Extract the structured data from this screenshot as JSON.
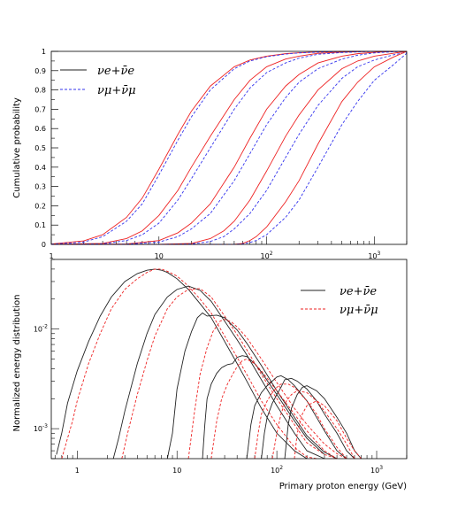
{
  "colors": {
    "red": "#ee2222",
    "blue": "#3333ee",
    "black": "#222222",
    "frame": "#000000"
  },
  "chart_data": [
    {
      "type": "line",
      "xscale": "log",
      "xlim": [
        1,
        2000
      ],
      "ylim": [
        0,
        1
      ],
      "ylabel": "Cumulative probability",
      "xlabel": "",
      "x_tick_labels": [
        "1",
        "10",
        "10^2",
        "10^3"
      ],
      "y_tick_labels": [
        "0",
        "0.1",
        "0.2",
        "0.3",
        "0.4",
        "0.5",
        "0.6",
        "0.7",
        "0.8",
        "0.9",
        "1"
      ],
      "legend": {
        "position": "top-left",
        "entries": [
          {
            "name": "νe+ν̄e",
            "style": "solid"
          },
          {
            "name": "νμ+ν̄μ",
            "style": "dashed"
          }
        ]
      },
      "series": [
        {
          "flavor": "e",
          "x": [
            1,
            2,
            3,
            5,
            7,
            10,
            15,
            20,
            30,
            50,
            70,
            100,
            150,
            200,
            300,
            500,
            700,
            1000,
            1500,
            2000
          ],
          "y": [
            0.002,
            0.018,
            0.05,
            0.14,
            0.24,
            0.39,
            0.57,
            0.69,
            0.82,
            0.92,
            0.955,
            0.975,
            0.988,
            0.993,
            0.997,
            0.999,
            1,
            1,
            1,
            1
          ]
        },
        {
          "flavor": "mu",
          "x": [
            1,
            2,
            3,
            5,
            7,
            10,
            15,
            20,
            30,
            50,
            70,
            100,
            150,
            200,
            300,
            500,
            700,
            1000,
            1500,
            2000
          ],
          "y": [
            0.001,
            0.012,
            0.04,
            0.12,
            0.21,
            0.36,
            0.54,
            0.66,
            0.8,
            0.91,
            0.95,
            0.972,
            0.986,
            0.992,
            0.996,
            0.999,
            1,
            1,
            1,
            1
          ]
        },
        {
          "flavor": "e",
          "x": [
            1,
            3,
            5,
            7,
            10,
            15,
            20,
            30,
            50,
            70,
            100,
            150,
            200,
            300,
            500,
            700,
            1000,
            1500,
            2000
          ],
          "y": [
            0,
            0.005,
            0.03,
            0.07,
            0.15,
            0.28,
            0.4,
            0.56,
            0.75,
            0.85,
            0.92,
            0.96,
            0.975,
            0.99,
            0.996,
            0.998,
            1,
            1,
            1
          ]
        },
        {
          "flavor": "mu",
          "x": [
            1,
            3,
            5,
            7,
            10,
            15,
            20,
            30,
            50,
            70,
            100,
            150,
            200,
            300,
            500,
            700,
            1000,
            1500,
            2000
          ],
          "y": [
            0,
            0.003,
            0.02,
            0.05,
            0.11,
            0.23,
            0.34,
            0.5,
            0.7,
            0.81,
            0.89,
            0.94,
            0.965,
            0.985,
            0.994,
            0.997,
            1,
            1,
            1
          ]
        },
        {
          "flavor": "e",
          "x": [
            1,
            5,
            10,
            15,
            20,
            30,
            50,
            70,
            100,
            150,
            200,
            300,
            500,
            700,
            1000,
            1500,
            2000
          ],
          "y": [
            0,
            0.002,
            0.02,
            0.06,
            0.11,
            0.21,
            0.4,
            0.55,
            0.7,
            0.82,
            0.88,
            0.94,
            0.975,
            0.988,
            0.995,
            0.999,
            1
          ]
        },
        {
          "flavor": "mu",
          "x": [
            1,
            5,
            10,
            15,
            20,
            30,
            50,
            70,
            100,
            150,
            200,
            300,
            500,
            700,
            1000,
            1500,
            2000
          ],
          "y": [
            0,
            0.001,
            0.012,
            0.04,
            0.08,
            0.16,
            0.33,
            0.47,
            0.62,
            0.76,
            0.84,
            0.91,
            0.96,
            0.98,
            0.992,
            0.998,
            1
          ]
        },
        {
          "flavor": "e",
          "x": [
            1,
            10,
            20,
            30,
            40,
            50,
            70,
            100,
            150,
            200,
            300,
            500,
            700,
            1000,
            1500,
            2000
          ],
          "y": [
            0,
            0,
            0.005,
            0.03,
            0.07,
            0.12,
            0.23,
            0.38,
            0.56,
            0.67,
            0.8,
            0.91,
            0.95,
            0.975,
            0.99,
            1
          ]
        },
        {
          "flavor": "mu",
          "x": [
            1,
            10,
            20,
            30,
            40,
            50,
            70,
            100,
            150,
            200,
            300,
            500,
            700,
            1000,
            1500,
            2000
          ],
          "y": [
            0,
            0,
            0.002,
            0.015,
            0.04,
            0.08,
            0.16,
            0.28,
            0.45,
            0.57,
            0.72,
            0.86,
            0.92,
            0.955,
            0.982,
            0.995
          ]
        },
        {
          "flavor": "e",
          "x": [
            1,
            50,
            60,
            70,
            80,
            100,
            150,
            200,
            300,
            500,
            700,
            1000,
            1500,
            2000
          ],
          "y": [
            0,
            0,
            0.005,
            0.02,
            0.04,
            0.09,
            0.22,
            0.33,
            0.52,
            0.74,
            0.84,
            0.92,
            0.97,
            1
          ]
        },
        {
          "flavor": "mu",
          "x": [
            1,
            50,
            60,
            70,
            80,
            100,
            150,
            200,
            300,
            500,
            700,
            1000,
            1500,
            2000
          ],
          "y": [
            0,
            0,
            0.002,
            0.01,
            0.02,
            0.05,
            0.14,
            0.23,
            0.4,
            0.62,
            0.74,
            0.85,
            0.93,
            0.99
          ]
        }
      ]
    },
    {
      "type": "line",
      "xscale": "log",
      "yscale": "log",
      "xlim": [
        0.55,
        2000
      ],
      "ylim": [
        0.0005,
        0.05
      ],
      "ylabel": "Normalized energy distribution",
      "xlabel": "Primary proton energy (GeV)",
      "x_tick_labels": [
        "1",
        "10",
        "10^2",
        "10^3"
      ],
      "y_tick_labels": [
        "10^-3",
        "10^-2"
      ],
      "legend": {
        "position": "top-right",
        "entries": [
          {
            "name": "νe+ν̄e",
            "style": "solid"
          },
          {
            "name": "νμ+ν̄μ",
            "style": "dashed"
          }
        ]
      },
      "series": [
        {
          "flavor": "e",
          "x": [
            0.62,
            0.7,
            0.8,
            1.0,
            1.3,
            1.7,
            2.2,
            3,
            4,
            5,
            6,
            7,
            8,
            10,
            13,
            17,
            22,
            30,
            40,
            50,
            70,
            100,
            150,
            200
          ],
          "y": [
            0.00055,
            0.0009,
            0.0018,
            0.0038,
            0.0075,
            0.0135,
            0.021,
            0.03,
            0.036,
            0.039,
            0.04,
            0.039,
            0.037,
            0.032,
            0.025,
            0.018,
            0.013,
            0.0075,
            0.0045,
            0.003,
            0.0016,
            0.0009,
            0.0006,
            0.0005
          ]
        },
        {
          "flavor": "mu",
          "x": [
            0.7,
            0.8,
            0.9,
            1.0,
            1.3,
            1.7,
            2.2,
            3,
            4,
            5,
            6,
            7,
            8,
            10,
            13,
            17,
            22,
            30,
            40,
            50,
            70,
            100,
            150,
            200,
            250
          ],
          "y": [
            0.0005,
            0.0008,
            0.0012,
            0.0019,
            0.0045,
            0.009,
            0.016,
            0.025,
            0.032,
            0.037,
            0.04,
            0.04,
            0.038,
            0.034,
            0.027,
            0.02,
            0.0145,
            0.0085,
            0.0052,
            0.0035,
            0.0019,
            0.0011,
            0.00065,
            0.00052,
            0.0005
          ]
        },
        {
          "flavor": "e",
          "x": [
            2.3,
            2.6,
            3,
            4,
            5,
            6,
            8,
            10,
            13,
            17,
            22,
            30,
            40,
            50,
            70,
            100,
            150,
            200,
            300
          ],
          "y": [
            0.0005,
            0.0008,
            0.0015,
            0.0045,
            0.009,
            0.014,
            0.021,
            0.025,
            0.027,
            0.0245,
            0.019,
            0.012,
            0.0078,
            0.0055,
            0.0031,
            0.0017,
            0.0009,
            0.0006,
            0.0005
          ]
        },
        {
          "flavor": "mu",
          "x": [
            2.8,
            3.2,
            4,
            5,
            6,
            8,
            10,
            13,
            17,
            22,
            30,
            40,
            50,
            70,
            100,
            150,
            200,
            300,
            400
          ],
          "y": [
            0.0005,
            0.0009,
            0.0022,
            0.0048,
            0.0085,
            0.016,
            0.021,
            0.025,
            0.0255,
            0.021,
            0.0135,
            0.0088,
            0.0062,
            0.0035,
            0.002,
            0.0011,
            0.00072,
            0.00055,
            0.0005
          ]
        },
        {
          "flavor": "e",
          "x": [
            8,
            9,
            10,
            12,
            14,
            16,
            18,
            20,
            25,
            30,
            40,
            50,
            70,
            100,
            150,
            200,
            300,
            400
          ],
          "y": [
            0.0005,
            0.0009,
            0.0025,
            0.006,
            0.0095,
            0.013,
            0.0145,
            0.0135,
            0.0138,
            0.013,
            0.0098,
            0.0072,
            0.0043,
            0.0024,
            0.0013,
            0.00085,
            0.00058,
            0.0005
          ]
        },
        {
          "flavor": "mu",
          "x": [
            13,
            15,
            17,
            20,
            23,
            27,
            30,
            35,
            40,
            50,
            70,
            100,
            150,
            200,
            300,
            400,
            500
          ],
          "y": [
            0.0005,
            0.0015,
            0.0035,
            0.0065,
            0.0095,
            0.012,
            0.0125,
            0.0118,
            0.0105,
            0.0082,
            0.005,
            0.0029,
            0.0016,
            0.0011,
            0.0007,
            0.00056,
            0.0005
          ]
        },
        {
          "flavor": "e",
          "x": [
            18,
            19,
            20,
            22,
            25,
            28,
            32,
            36,
            40,
            45,
            50,
            60,
            70,
            100,
            150,
            200,
            300
          ],
          "y": [
            0.0005,
            0.0011,
            0.002,
            0.0028,
            0.0036,
            0.0041,
            0.0044,
            0.0045,
            0.0052,
            0.0054,
            0.0053,
            0.0045,
            0.0037,
            0.0022,
            0.0012,
            0.0008,
            0.00055
          ]
        },
        {
          "flavor": "mu",
          "x": [
            22,
            25,
            28,
            32,
            36,
            40,
            45,
            50,
            60,
            70,
            100,
            150,
            200,
            300,
            400
          ],
          "y": [
            0.0005,
            0.0012,
            0.002,
            0.0028,
            0.0035,
            0.0042,
            0.0048,
            0.005,
            0.0045,
            0.0038,
            0.0024,
            0.0014,
            0.00095,
            0.0006,
            0.0005
          ]
        },
        {
          "flavor": "e",
          "x": [
            50,
            55,
            60,
            70,
            80,
            90,
            100,
            110,
            130,
            150,
            200,
            250,
            300,
            400,
            500
          ],
          "y": [
            0.0005,
            0.0011,
            0.0017,
            0.0023,
            0.0027,
            0.003,
            0.0033,
            0.0034,
            0.0031,
            0.0027,
            0.0019,
            0.0013,
            0.00095,
            0.0006,
            0.0005
          ]
        },
        {
          "flavor": "mu",
          "x": [
            60,
            65,
            70,
            80,
            90,
            100,
            110,
            130,
            150,
            200,
            250,
            300,
            400,
            500
          ],
          "y": [
            0.0005,
            0.0009,
            0.0014,
            0.0019,
            0.0023,
            0.0026,
            0.0028,
            0.0028,
            0.0026,
            0.0019,
            0.0014,
            0.001,
            0.00065,
            0.0005
          ]
        },
        {
          "flavor": "e",
          "x": [
            70,
            75,
            80,
            90,
            100,
            110,
            120,
            140,
            160,
            200,
            250,
            300,
            400,
            500,
            600
          ],
          "y": [
            0.0005,
            0.0009,
            0.0013,
            0.0018,
            0.0022,
            0.0026,
            0.0031,
            0.0032,
            0.003,
            0.0025,
            0.0019,
            0.0014,
            0.0009,
            0.0006,
            0.0005
          ]
        },
        {
          "flavor": "mu",
          "x": [
            90,
            100,
            110,
            120,
            140,
            160,
            200,
            250,
            300,
            400,
            500,
            600
          ],
          "y": [
            0.0005,
            0.0009,
            0.0014,
            0.0018,
            0.0022,
            0.0024,
            0.0023,
            0.0019,
            0.0015,
            0.001,
            0.0007,
            0.0005
          ]
        },
        {
          "flavor": "e",
          "x": [
            120,
            130,
            140,
            160,
            180,
            200,
            250,
            300,
            400,
            500,
            600,
            700
          ],
          "y": [
            0.0005,
            0.0011,
            0.0016,
            0.0022,
            0.0026,
            0.0027,
            0.0024,
            0.002,
            0.0013,
            0.0009,
            0.0006,
            0.0005
          ]
        },
        {
          "flavor": "mu",
          "x": [
            150,
            160,
            180,
            200,
            250,
            300,
            400,
            500,
            600,
            700
          ],
          "y": [
            0.0005,
            0.0009,
            0.0014,
            0.0017,
            0.0019,
            0.0017,
            0.0012,
            0.0008,
            0.0006,
            0.0005
          ]
        }
      ]
    }
  ]
}
